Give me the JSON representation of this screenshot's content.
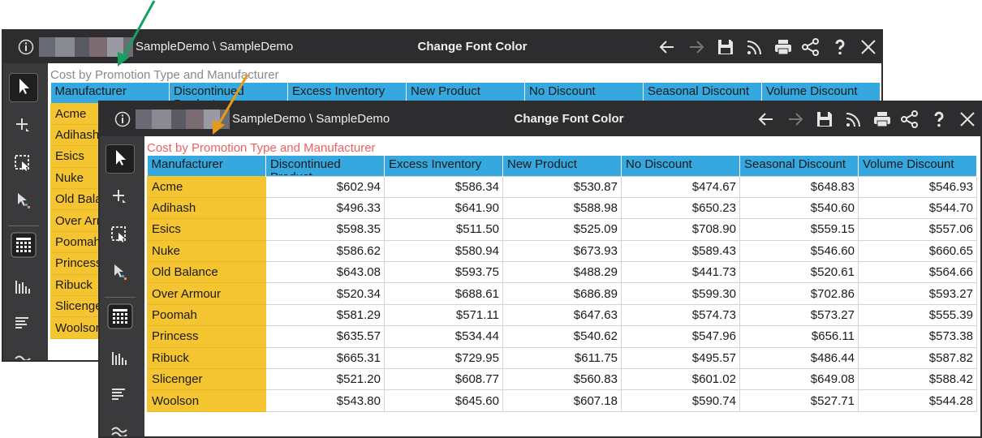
{
  "windows": [
    {
      "breadcrumb": "SampleDemo \\ SampleDemo",
      "title": "Change Font Color",
      "report_title": "Cost by Promotion Type and Manufacturer"
    },
    {
      "breadcrumb": "SampleDemo \\ SampleDemo",
      "title": "Change Font Color",
      "report_title": "Cost by Promotion Type and Manufacturer"
    }
  ],
  "table": {
    "columns": [
      "Manufacturer",
      "Discontinued Product",
      "Excess Inventory",
      "New Product",
      "No Discount",
      "Seasonal Discount",
      "Volume Discount"
    ],
    "rows": [
      [
        "Acme",
        "$602.94",
        "$586.34",
        "$530.87",
        "$474.67",
        "$648.83",
        "$546.93"
      ],
      [
        "Adihash",
        "$496.33",
        "$641.90",
        "$588.98",
        "$650.23",
        "$540.60",
        "$544.70"
      ],
      [
        "Esics",
        "$598.35",
        "$511.50",
        "$525.09",
        "$708.90",
        "$559.15",
        "$557.06"
      ],
      [
        "Nuke",
        "$586.62",
        "$580.94",
        "$673.93",
        "$589.43",
        "$546.60",
        "$660.65"
      ],
      [
        "Old Balance",
        "$643.08",
        "$593.75",
        "$488.29",
        "$441.73",
        "$520.61",
        "$564.66"
      ],
      [
        "Over Armour",
        "$520.34",
        "$688.61",
        "$686.89",
        "$599.30",
        "$702.86",
        "$593.27"
      ],
      [
        "Poomah",
        "$581.29",
        "$571.11",
        "$647.63",
        "$574.73",
        "$573.27",
        "$555.39"
      ],
      [
        "Princess",
        "$635.57",
        "$534.44",
        "$540.62",
        "$547.96",
        "$656.11",
        "$573.38"
      ],
      [
        "Ribuck",
        "$665.31",
        "$729.95",
        "$611.75",
        "$495.57",
        "$486.44",
        "$587.82"
      ],
      [
        "Slicenger",
        "$521.20",
        "$608.77",
        "$560.83",
        "$601.02",
        "$649.08",
        "$588.42"
      ],
      [
        "Woolson",
        "$543.80",
        "$645.60",
        "$607.18",
        "$590.74",
        "$527.71",
        "$544.28"
      ]
    ]
  }
}
